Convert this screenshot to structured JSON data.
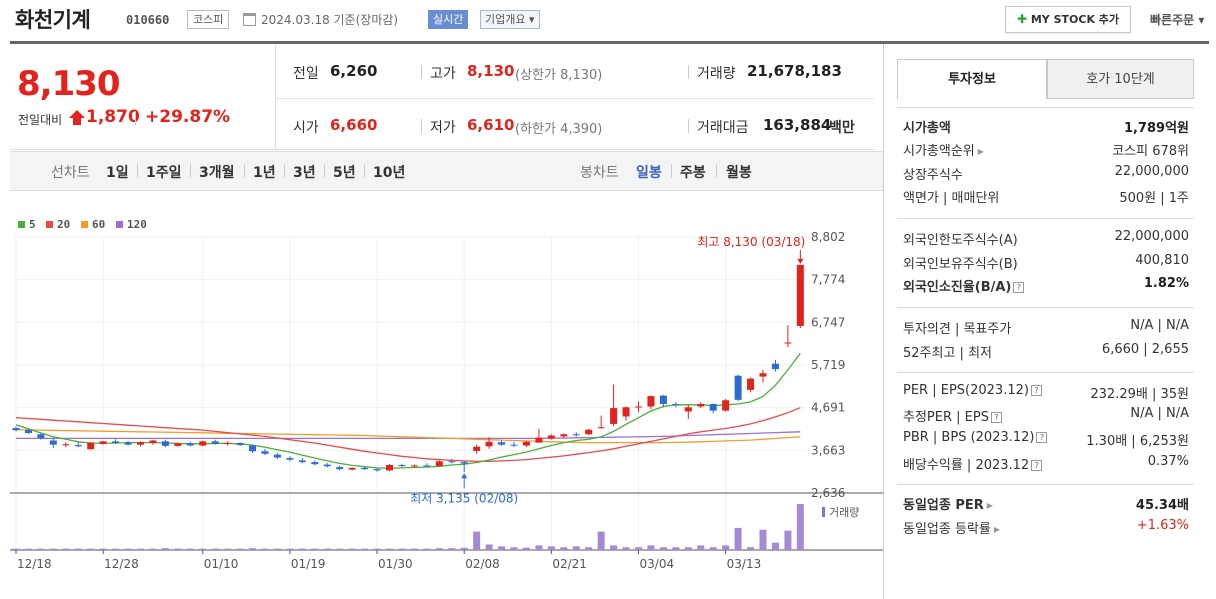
{
  "header": {
    "stock_name": "화천기계",
    "stock_code": "010660",
    "market": "코스피",
    "date_info": "2024.03.18  기준(장마감)",
    "realtime": "실시간",
    "company_info": "기업개요 ▾",
    "mystock": "MY STOCK 추가",
    "quick_order": "빠른주문 ▾"
  },
  "summary": {
    "price": "8,130",
    "change_label": "전일대비",
    "change": "1,870",
    "change_pct": "+29.87%",
    "prev_label": "전일",
    "prev": "6,260",
    "high_label": "고가",
    "high": "8,130",
    "upper_limit": "(상한가 8,130)",
    "volume_label": "거래량",
    "volume": "21,678,183",
    "open_label": "시가",
    "open": "6,660",
    "low_label": "저가",
    "low": "6,610",
    "lower_limit": "(하한가 4,390)",
    "amount_label": "거래대금",
    "amount": "163,884",
    "amount_unit": "백만"
  },
  "period_bar": {
    "line_label": "선차트",
    "line_items": [
      "1일",
      "1주일",
      "3개월",
      "1년",
      "3년",
      "5년",
      "10년"
    ],
    "candle_label": "봉차트",
    "candle_items": [
      "일봉",
      "주봉",
      "월봉"
    ]
  },
  "legend": [
    {
      "label": "5",
      "color": "#4caf3a"
    },
    {
      "label": "20",
      "color": "#e84a4a"
    },
    {
      "label": "60",
      "color": "#f39c2c"
    },
    {
      "label": "120",
      "color": "#a070d0"
    }
  ],
  "annotations": {
    "high": "최고 8,130 (03/18)",
    "low": "최저 3,135 (02/08)",
    "volume_label": "거래량"
  },
  "chart_data": {
    "type": "candlestick",
    "y_ticks": [
      "8,802",
      "7,774",
      "6,747",
      "5,719",
      "4,691",
      "3,663",
      "2,636"
    ],
    "ylim": [
      2636,
      8802
    ],
    "x_ticks": [
      "12/18",
      "12/28",
      "01/10",
      "01/19",
      "01/30",
      "02/08",
      "02/21",
      "03/04",
      "03/13"
    ],
    "x_tick_index": [
      0,
      7,
      15,
      22,
      29,
      36,
      43,
      50,
      57
    ],
    "ohlc": [
      [
        4200,
        4240,
        4120,
        4150
      ],
      [
        4150,
        4180,
        4060,
        4080
      ],
      [
        4050,
        4090,
        3920,
        3960
      ],
      [
        3900,
        3960,
        3720,
        3800
      ],
      [
        3800,
        3860,
        3740,
        3810
      ],
      [
        3790,
        3850,
        3740,
        3760
      ],
      [
        3690,
        3860,
        3690,
        3850
      ],
      [
        3820,
        3890,
        3800,
        3880
      ],
      [
        3880,
        3930,
        3820,
        3840
      ],
      [
        3850,
        3890,
        3780,
        3800
      ],
      [
        3800,
        3880,
        3760,
        3860
      ],
      [
        3840,
        3920,
        3800,
        3900
      ],
      [
        3880,
        3920,
        3740,
        3770
      ],
      [
        3770,
        3850,
        3750,
        3830
      ],
      [
        3830,
        3870,
        3760,
        3780
      ],
      [
        3780,
        3900,
        3760,
        3880
      ],
      [
        3880,
        3920,
        3800,
        3820
      ],
      [
        3830,
        3880,
        3780,
        3840
      ],
      [
        3840,
        3860,
        3770,
        3790
      ],
      [
        3780,
        3800,
        3600,
        3640
      ],
      [
        3640,
        3700,
        3550,
        3580
      ],
      [
        3560,
        3600,
        3460,
        3490
      ],
      [
        3480,
        3520,
        3400,
        3440
      ],
      [
        3420,
        3480,
        3350,
        3380
      ],
      [
        3380,
        3420,
        3300,
        3330
      ],
      [
        3320,
        3360,
        3250,
        3280
      ],
      [
        3260,
        3300,
        3180,
        3210
      ],
      [
        3200,
        3260,
        3180,
        3240
      ],
      [
        3240,
        3280,
        3190,
        3210
      ],
      [
        3210,
        3240,
        3150,
        3180
      ],
      [
        3180,
        3330,
        3170,
        3310
      ],
      [
        3310,
        3340,
        3260,
        3290
      ],
      [
        3290,
        3320,
        3240,
        3300
      ],
      [
        3300,
        3350,
        3260,
        3280
      ],
      [
        3280,
        3420,
        3270,
        3400
      ],
      [
        3400,
        3460,
        3350,
        3380
      ],
      [
        3380,
        3410,
        3135,
        3350
      ],
      [
        3650,
        3800,
        3580,
        3750
      ],
      [
        3760,
        3980,
        3700,
        3870
      ],
      [
        3860,
        3900,
        3770,
        3800
      ],
      [
        3800,
        3860,
        3740,
        3780
      ],
      [
        3780,
        3880,
        3740,
        3870
      ],
      [
        3850,
        4180,
        3850,
        3970
      ],
      [
        3950,
        4050,
        3920,
        4020
      ],
      [
        4000,
        4070,
        3960,
        4050
      ],
      [
        4050,
        4100,
        3990,
        4030
      ],
      [
        4050,
        4180,
        4030,
        4160
      ],
      [
        4200,
        4500,
        4180,
        4220
      ],
      [
        4300,
        5250,
        4250,
        4680
      ],
      [
        4480,
        4720,
        4380,
        4700
      ],
      [
        4700,
        4840,
        4580,
        4720
      ],
      [
        4720,
        4980,
        4650,
        4970
      ],
      [
        4980,
        5000,
        4700,
        4780
      ],
      [
        4780,
        4830,
        4700,
        4760
      ],
      [
        4600,
        4760,
        4420,
        4700
      ],
      [
        4720,
        4820,
        4680,
        4780
      ],
      [
        4780,
        4790,
        4560,
        4620
      ],
      [
        4620,
        4900,
        4600,
        4870
      ],
      [
        5460,
        5490,
        4850,
        4880
      ],
      [
        5120,
        5420,
        5060,
        5390
      ],
      [
        5440,
        5600,
        5300,
        5520
      ],
      [
        5750,
        5840,
        5560,
        5620
      ],
      [
        6260,
        6680,
        6150,
        6260
      ],
      [
        6660,
        8130,
        6610,
        8130
      ]
    ],
    "ma": {
      "5": [
        4280,
        4180,
        4080,
        3990,
        3930,
        3870,
        3840,
        3830,
        3840,
        3850,
        3850,
        3850,
        3840,
        3830,
        3820,
        3820,
        3830,
        3830,
        3820,
        3790,
        3740,
        3680,
        3620,
        3550,
        3480,
        3410,
        3350,
        3300,
        3270,
        3240,
        3230,
        3240,
        3250,
        3260,
        3280,
        3310,
        3330,
        3370,
        3430,
        3500,
        3560,
        3620,
        3700,
        3780,
        3850,
        3900,
        3930,
        3990,
        4120,
        4290,
        4450,
        4610,
        4720,
        4760,
        4760,
        4760,
        4740,
        4760,
        4780,
        4830,
        4960,
        5230,
        5600,
        6000
      ],
      "20": [
        4450,
        4430,
        4410,
        4390,
        4370,
        4350,
        4330,
        4310,
        4290,
        4270,
        4250,
        4230,
        4210,
        4190,
        4170,
        4150,
        4120,
        4090,
        4060,
        4030,
        4000,
        3960,
        3920,
        3880,
        3840,
        3790,
        3740,
        3690,
        3640,
        3600,
        3560,
        3520,
        3490,
        3460,
        3440,
        3420,
        3410,
        3400,
        3400,
        3410,
        3420,
        3440,
        3470,
        3500,
        3530,
        3570,
        3610,
        3650,
        3700,
        3760,
        3820,
        3880,
        3940,
        4000,
        4060,
        4110,
        4150,
        4190,
        4240,
        4300,
        4380,
        4470,
        4570,
        4690
      ],
      "60": [
        4160,
        4155,
        4150,
        4145,
        4140,
        4135,
        4130,
        4125,
        4120,
        4115,
        4110,
        4105,
        4100,
        4095,
        4090,
        4085,
        4080,
        4075,
        4070,
        4065,
        4060,
        4055,
        4050,
        4045,
        4040,
        4035,
        4030,
        4025,
        4020,
        4010,
        4000,
        3990,
        3980,
        3970,
        3960,
        3950,
        3940,
        3930,
        3920,
        3910,
        3900,
        3890,
        3880,
        3870,
        3860,
        3855,
        3850,
        3850,
        3850,
        3850,
        3850,
        3850,
        3850,
        3855,
        3860,
        3870,
        3880,
        3890,
        3900,
        3910,
        3930,
        3950,
        3970,
        3990
      ],
      "120": [
        3950,
        3950,
        3950,
        3950,
        3950,
        3950,
        3950,
        3950,
        3950,
        3950,
        3950,
        3950,
        3950,
        3950,
        3950,
        3950,
        3950,
        3950,
        3950,
        3950,
        3950,
        3950,
        3950,
        3950,
        3950,
        3950,
        3950,
        3950,
        3950,
        3950,
        3950,
        3950,
        3950,
        3950,
        3950,
        3950,
        3950,
        3950,
        3950,
        3950,
        3950,
        3950,
        3950,
        3955,
        3960,
        3965,
        3970,
        3975,
        3980,
        3985,
        3990,
        3995,
        4000,
        4010,
        4020,
        4030,
        4040,
        4050,
        4060,
        4070,
        4080,
        4090,
        4100,
        4110
      ]
    },
    "volume": [
      0.03,
      0.03,
      0.03,
      0.03,
      0.03,
      0.03,
      0.03,
      0.03,
      0.03,
      0.03,
      0.03,
      0.03,
      0.04,
      0.03,
      0.03,
      0.03,
      0.03,
      0.03,
      0.03,
      0.04,
      0.03,
      0.03,
      0.03,
      0.03,
      0.03,
      0.03,
      0.03,
      0.03,
      0.03,
      0.03,
      0.03,
      0.03,
      0.03,
      0.03,
      0.04,
      0.04,
      0.05,
      0.4,
      0.12,
      0.08,
      0.06,
      0.05,
      0.1,
      0.08,
      0.06,
      0.08,
      0.06,
      0.4,
      0.1,
      0.06,
      0.06,
      0.1,
      0.06,
      0.06,
      0.06,
      0.1,
      0.06,
      0.1,
      0.48,
      0.06,
      0.44,
      0.16,
      0.42,
      1.0
    ]
  },
  "invest_panel": {
    "tabs": [
      "투자정보",
      "호가 10단계"
    ],
    "rows": [
      {
        "k": "시가총액",
        "v": "1,789억원",
        "bold": true
      },
      {
        "k": "시가총액순위",
        "v": "코스피 678위",
        "tri": true
      },
      {
        "k": "상장주식수",
        "v": "22,000,000"
      },
      {
        "k": "액면가 | 매매단위",
        "v": "500원 | 1주"
      },
      {
        "k": "외국인한도주식수(A)",
        "v": "22,000,000"
      },
      {
        "k": "외국인보유주식수(B)",
        "v": "400,810"
      },
      {
        "k": "외국인소진율(B/A)",
        "v": "1.82%",
        "bold": true,
        "q": true
      },
      {
        "k": "투자의견 | 목표주가",
        "v": "N/A | N/A"
      },
      {
        "k": "52주최고 | 최저",
        "v": "6,660 | 2,655"
      },
      {
        "k": "PER | EPS(2023.12)",
        "v": "232.29배 | 35원",
        "q": true
      },
      {
        "k": "추정PER | EPS",
        "v": "N/A | N/A",
        "q": true
      },
      {
        "k": "PBR | BPS (2023.12)",
        "v": "1.30배 | 6,253원",
        "q": true
      },
      {
        "k": "배당수익률 | 2023.12",
        "v": "0.37%",
        "q": true
      },
      {
        "k": "동일업종 PER",
        "v": "45.34배",
        "bold": true,
        "tri": true
      },
      {
        "k": "동일업종 등락률",
        "v": "+1.63%",
        "red": true,
        "tri": true
      }
    ]
  }
}
